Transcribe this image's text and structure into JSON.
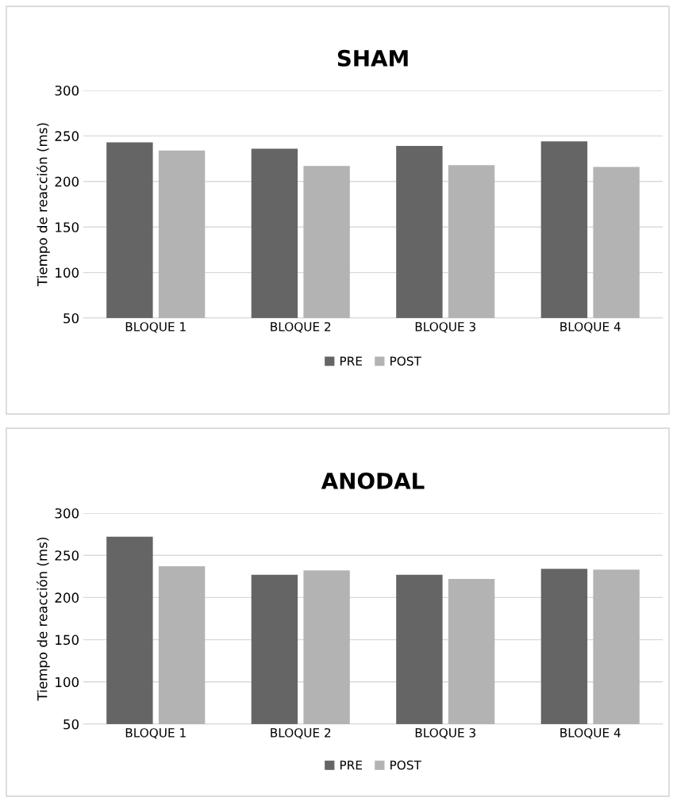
{
  "chart_data": [
    {
      "type": "bar",
      "title": "SHAM",
      "ylabel": "Tiempo de reacción (ms)",
      "categories": [
        "BLOQUE 1",
        "BLOQUE 2",
        "BLOQUE 3",
        "BLOQUE 4"
      ],
      "series": [
        {
          "name": "PRE",
          "color": "#656565",
          "values": [
            243,
            236,
            239,
            244
          ]
        },
        {
          "name": "POST",
          "color": "#b3b3b3",
          "values": [
            234,
            217,
            218,
            216
          ]
        }
      ],
      "ylim": [
        50,
        300
      ],
      "yticks": [
        50,
        100,
        150,
        200,
        250,
        300
      ],
      "grid": "y",
      "legend": "bottom"
    },
    {
      "type": "bar",
      "title": "ANODAL",
      "ylabel": "Tiempo de reacción (ms)",
      "categories": [
        "BLOQUE 1",
        "BLOQUE 2",
        "BLOQUE 3",
        "BLOQUE 4"
      ],
      "series": [
        {
          "name": "PRE",
          "color": "#656565",
          "values": [
            272,
            227,
            227,
            234
          ]
        },
        {
          "name": "POST",
          "color": "#b3b3b3",
          "values": [
            237,
            232,
            222,
            233
          ]
        }
      ],
      "ylim": [
        50,
        300
      ],
      "yticks": [
        50,
        100,
        150,
        200,
        250,
        300
      ],
      "grid": "y",
      "legend": "bottom"
    }
  ]
}
